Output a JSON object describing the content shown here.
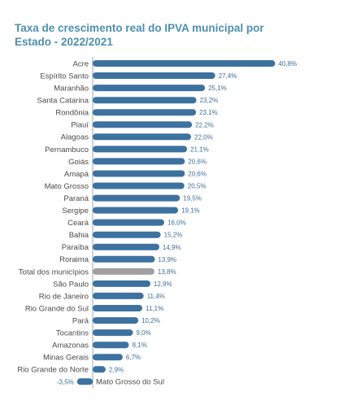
{
  "chart_data": {
    "type": "bar",
    "orientation": "horizontal",
    "title": "Taxa de crescimento real do IPVA municipal por Estado  - 2022/2021",
    "colors": {
      "bar": "#3d72a0",
      "highlight": "#a0a0a0"
    },
    "categories": [
      "Acre",
      "Espírito Santo",
      "Maranhão",
      "Santa Catarina",
      "Rondônia",
      "Piauí",
      "Alagoas",
      "Pernambuco",
      "Goiás",
      "Amapá",
      "Mato Grosso",
      "Paraná",
      "Sergipe",
      "Ceará",
      "Bahia",
      "Paraíba",
      "Roraima",
      "Total dos municípios",
      "São Paulo",
      "Rio de Janeiro",
      "Rio Grande do Sul",
      "Pará",
      "Tocantins",
      "Amazonas",
      "Minas Gerais",
      "Rio Grande do Norte",
      "Mato Grosso do Sul"
    ],
    "values": [
      40.8,
      27.4,
      25.1,
      23.2,
      23.1,
      22.2,
      22.0,
      21.1,
      20.6,
      20.6,
      20.5,
      19.5,
      19.1,
      16.0,
      15.2,
      14.9,
      13.9,
      13.8,
      12.9,
      11.4,
      11.1,
      10.2,
      9.0,
      8.1,
      6.7,
      2.9,
      -3.5
    ],
    "labels": [
      "40,8%",
      "27,4%",
      "25,1%",
      "23,2%",
      "23,1%",
      "22,2%",
      "22,0%",
      "21,1%",
      "20,6%",
      "20,6%",
      "20,5%",
      "19,5%",
      "19,1%",
      "16,0%",
      "15,2%",
      "14,9%",
      "13,9%",
      "13,8%",
      "12,9%",
      "11,4%",
      "11,1%",
      "10,2%",
      "9,0%",
      "8,1%",
      "6,7%",
      "2,9%",
      "-3,5%"
    ],
    "highlight_index": 17,
    "xlim": [
      -3.5,
      40.8
    ]
  }
}
